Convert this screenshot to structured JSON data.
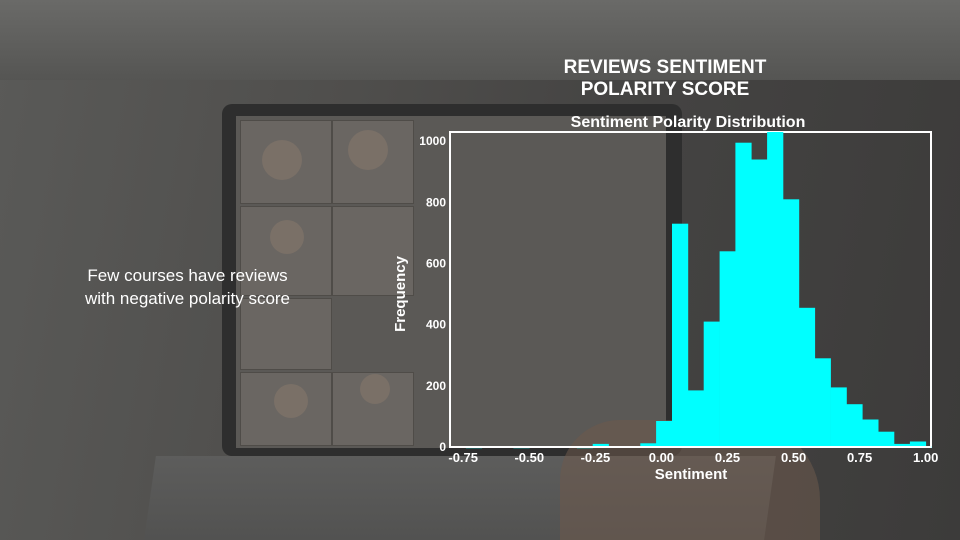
{
  "slide": {
    "title_line1": "REVIEWS SENTIMENT",
    "title_line2": "POLARITY SCORE",
    "side_text_line1": "Few courses have reviews",
    "side_text_line2": "with negative polarity score"
  },
  "chart_data": {
    "type": "bar",
    "title": "Sentiment Polarity Distribution",
    "xlabel": "Sentiment",
    "ylabel": "Frequency",
    "xlim": [
      -0.8,
      1.02
    ],
    "ylim": [
      0,
      1030
    ],
    "xticks": [
      "-0.75",
      "-0.50",
      "-0.25",
      "0.00",
      "0.25",
      "0.50",
      "0.75",
      "1.00"
    ],
    "xtick_values": [
      -0.75,
      -0.5,
      -0.25,
      0.0,
      0.25,
      0.5,
      0.75,
      1.0
    ],
    "yticks": [
      "0",
      "200",
      "400",
      "600",
      "800",
      "1000"
    ],
    "ytick_values": [
      0,
      200,
      400,
      600,
      800,
      1000
    ],
    "bar_color": "#00FFFF",
    "bins": [
      {
        "start": -0.8,
        "end": -0.74,
        "value": 3
      },
      {
        "start": -0.74,
        "end": -0.68,
        "value": 1
      },
      {
        "start": -0.68,
        "end": -0.62,
        "value": 0
      },
      {
        "start": -0.62,
        "end": -0.56,
        "value": 0
      },
      {
        "start": -0.56,
        "end": -0.5,
        "value": 1
      },
      {
        "start": -0.5,
        "end": -0.44,
        "value": 0
      },
      {
        "start": -0.44,
        "end": -0.38,
        "value": 2
      },
      {
        "start": -0.38,
        "end": -0.32,
        "value": 2
      },
      {
        "start": -0.32,
        "end": -0.26,
        "value": 1
      },
      {
        "start": -0.26,
        "end": -0.2,
        "value": 10
      },
      {
        "start": -0.2,
        "end": -0.14,
        "value": 3
      },
      {
        "start": -0.14,
        "end": -0.08,
        "value": 3
      },
      {
        "start": -0.08,
        "end": -0.02,
        "value": 12
      },
      {
        "start": -0.02,
        "end": 0.04,
        "value": 85
      },
      {
        "start": 0.04,
        "end": 0.1,
        "value": 730
      },
      {
        "start": 0.1,
        "end": 0.16,
        "value": 185
      },
      {
        "start": 0.16,
        "end": 0.22,
        "value": 410
      },
      {
        "start": 0.22,
        "end": 0.28,
        "value": 640
      },
      {
        "start": 0.28,
        "end": 0.34,
        "value": 995
      },
      {
        "start": 0.34,
        "end": 0.4,
        "value": 940
      },
      {
        "start": 0.4,
        "end": 0.46,
        "value": 1030
      },
      {
        "start": 0.46,
        "end": 0.52,
        "value": 810
      },
      {
        "start": 0.52,
        "end": 0.58,
        "value": 455
      },
      {
        "start": 0.58,
        "end": 0.64,
        "value": 290
      },
      {
        "start": 0.64,
        "end": 0.7,
        "value": 195
      },
      {
        "start": 0.7,
        "end": 0.76,
        "value": 140
      },
      {
        "start": 0.76,
        "end": 0.82,
        "value": 90
      },
      {
        "start": 0.82,
        "end": 0.88,
        "value": 50
      },
      {
        "start": 0.88,
        "end": 0.94,
        "value": 10
      },
      {
        "start": 0.94,
        "end": 1.0,
        "value": 18
      },
      {
        "start": 1.0,
        "end": 1.02,
        "value": 2
      }
    ]
  }
}
